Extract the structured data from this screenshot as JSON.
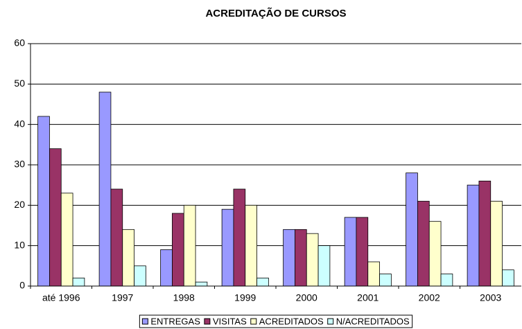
{
  "chart_data": {
    "type": "bar",
    "title": "ACREDITAÇÃO DE CURSOS",
    "categories": [
      "até 1996",
      "1997",
      "1998",
      "1999",
      "2000",
      "2001",
      "2002",
      "2003"
    ],
    "series": [
      {
        "name": "ENTREGAS",
        "color": "#9999ff",
        "values": [
          42,
          48,
          9,
          19,
          14,
          17,
          28,
          25
        ]
      },
      {
        "name": "VISITAS",
        "color": "#993366",
        "values": [
          34,
          24,
          18,
          24,
          14,
          17,
          21,
          26
        ]
      },
      {
        "name": "ACREDITADOS",
        "color": "#ffffcc",
        "values": [
          23,
          14,
          20,
          20,
          13,
          6,
          16,
          21
        ]
      },
      {
        "name": "N/ACREDITADOS",
        "color": "#ccffff",
        "values": [
          2,
          5,
          1,
          2,
          10,
          3,
          3,
          4
        ]
      }
    ],
    "ylim": [
      0,
      60
    ],
    "yticks": [
      0,
      10,
      20,
      30,
      40,
      50,
      60
    ],
    "grid": true,
    "legend": "bottom"
  }
}
